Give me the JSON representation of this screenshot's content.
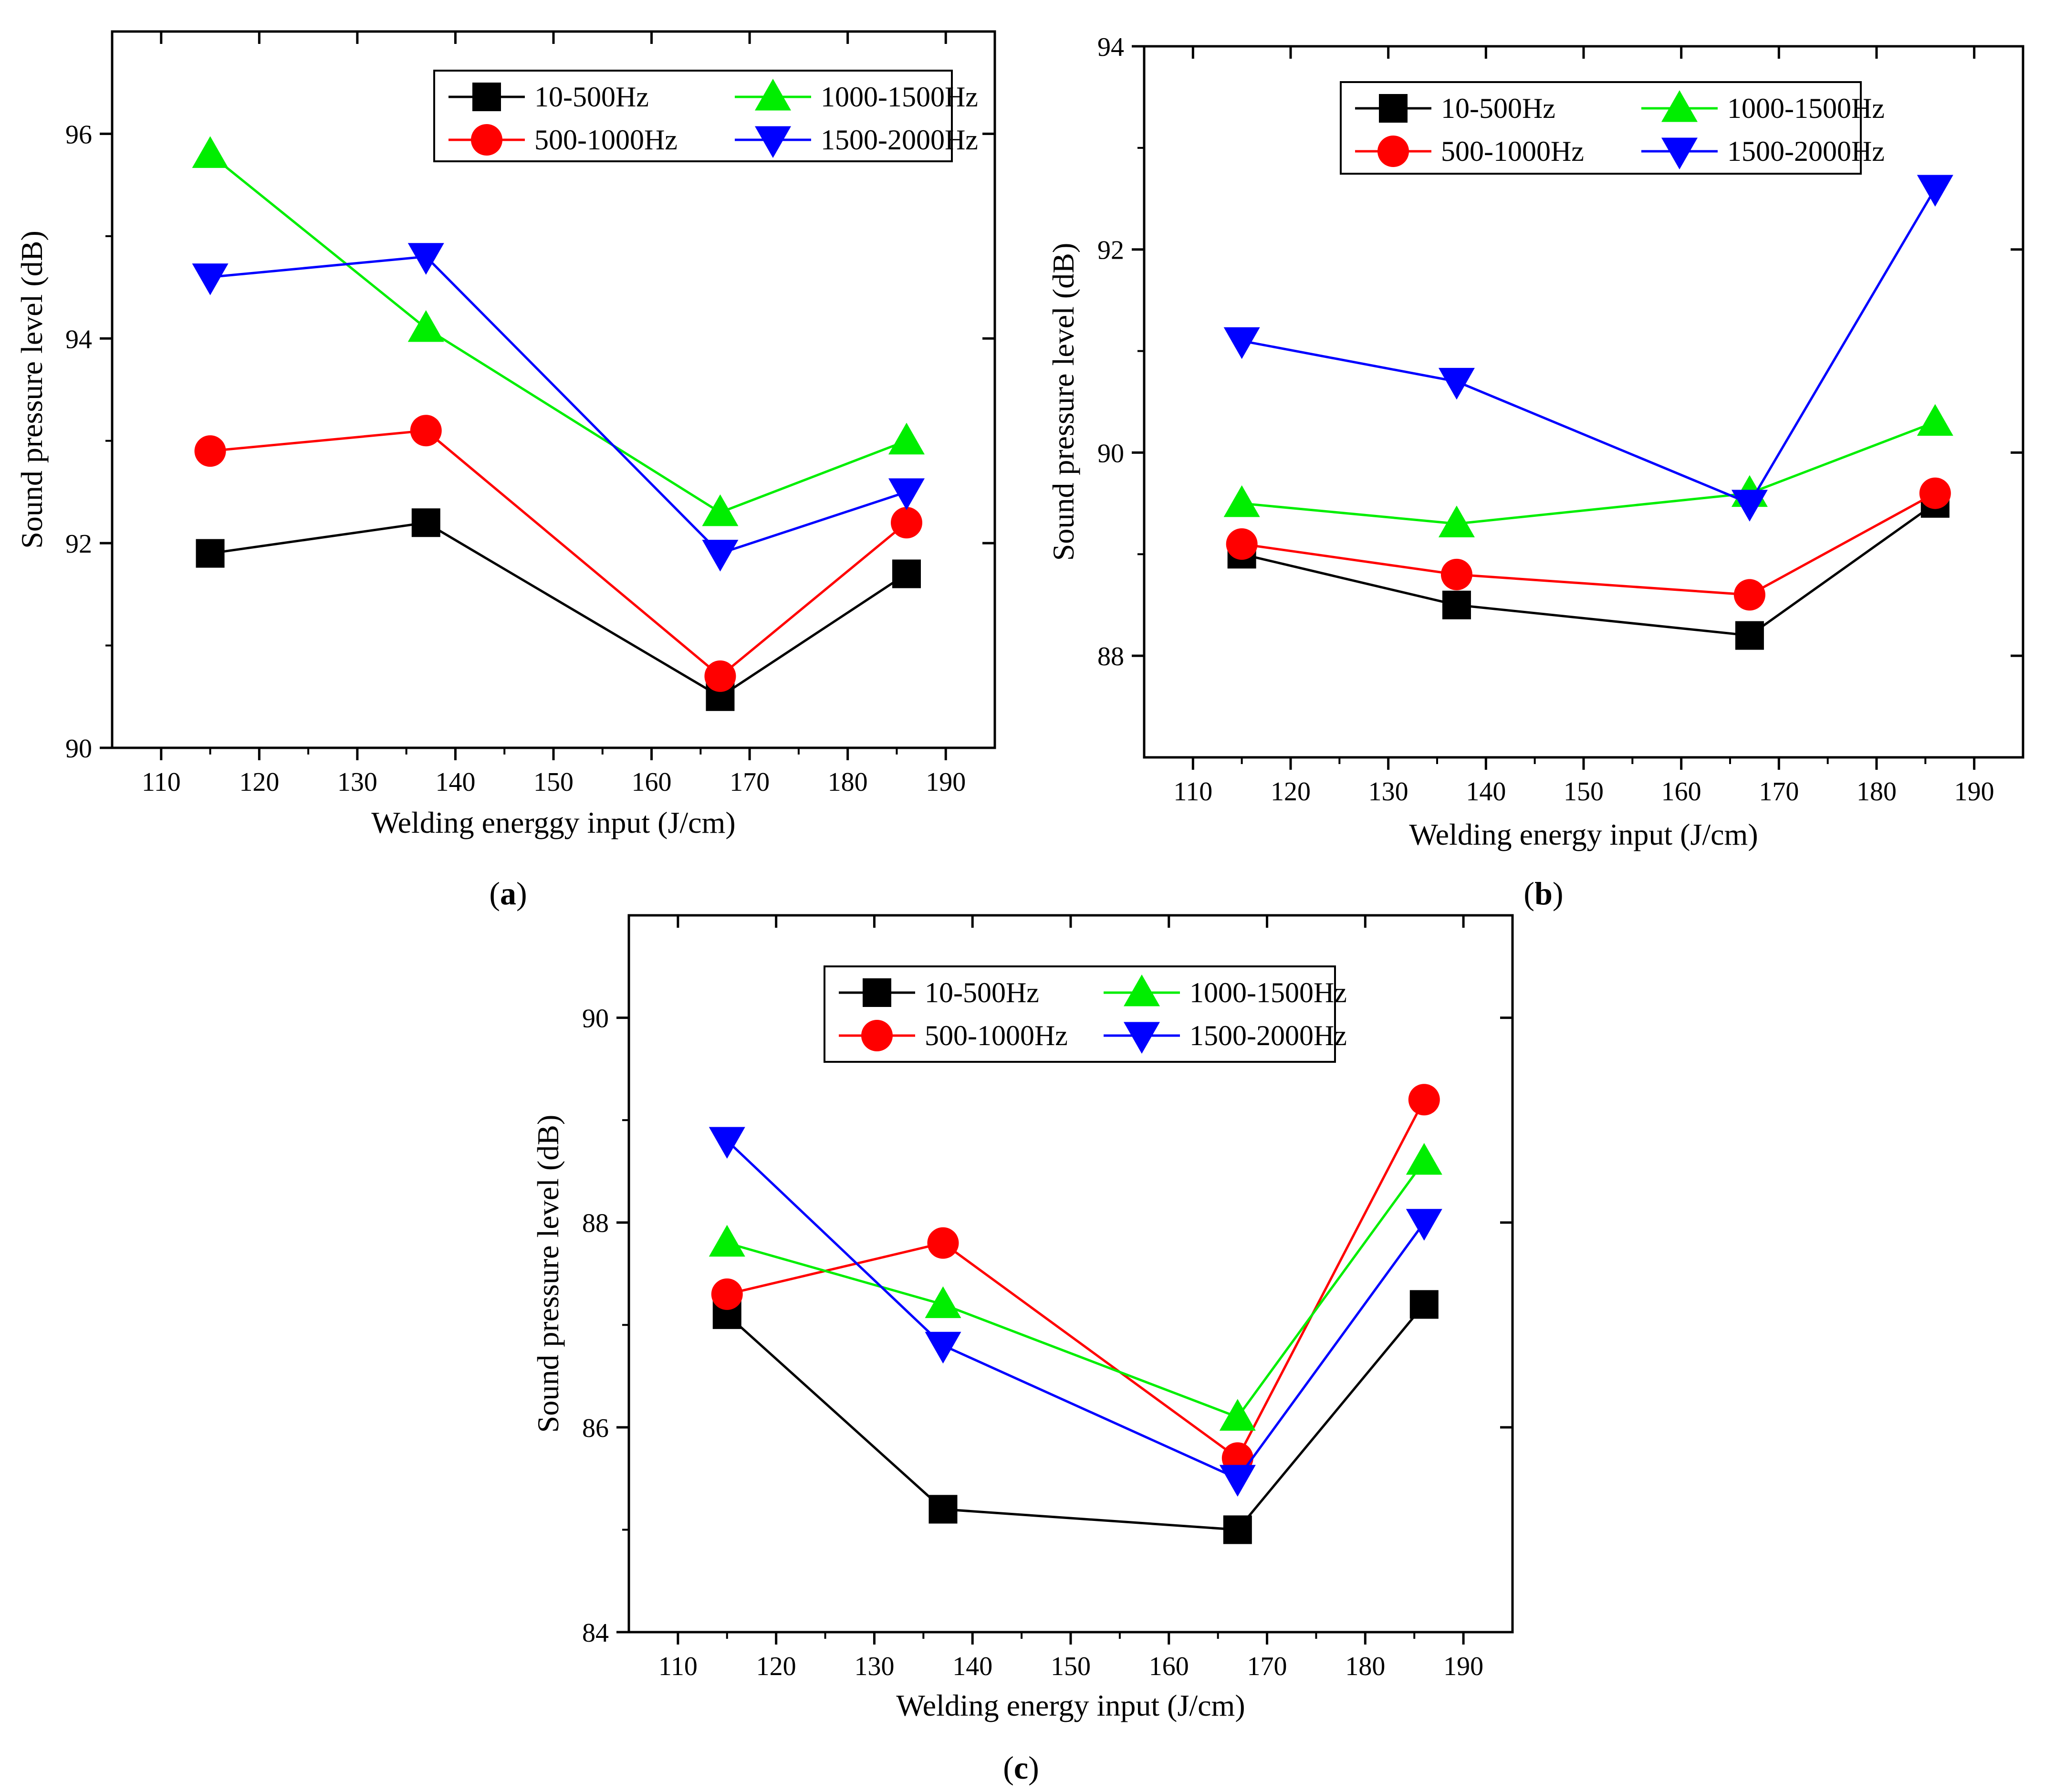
{
  "figure": {
    "x_tick_labels": [
      "110",
      "120",
      "130",
      "140",
      "150",
      "160",
      "170",
      "180",
      "190"
    ]
  },
  "chart_data": [
    {
      "type": "line",
      "panel": "a",
      "panel_label": "a",
      "xlabel": "Welding energgy input (J/cm)",
      "ylabel": "Sound pressure level (dB)",
      "xlim": [
        105,
        195
      ],
      "ylim": [
        90,
        97
      ],
      "x_ticks": [
        110,
        120,
        130,
        140,
        150,
        160,
        170,
        180,
        190
      ],
      "y_ticks": [
        90,
        92,
        94,
        96
      ],
      "y_tick_labels": [
        "90",
        "92",
        "94",
        "96"
      ],
      "legend_position": "top-right",
      "x": [
        115,
        137,
        167,
        186
      ],
      "series": [
        {
          "name": "10-500Hz",
          "color": "#000000",
          "marker": "square",
          "values": [
            91.9,
            92.2,
            90.5,
            91.7
          ]
        },
        {
          "name": "500-1000Hz",
          "color": "#ff0000",
          "marker": "circle",
          "values": [
            92.9,
            93.1,
            90.7,
            92.2
          ]
        },
        {
          "name": "1000-1500Hz",
          "color": "#00ee00",
          "marker": "triangle-up",
          "values": [
            95.8,
            94.1,
            92.3,
            93.0
          ]
        },
        {
          "name": "1500-2000Hz",
          "color": "#0000ff",
          "marker": "triangle-down",
          "values": [
            94.6,
            94.8,
            91.9,
            92.5
          ]
        }
      ]
    },
    {
      "type": "line",
      "panel": "b",
      "panel_label": "b",
      "xlabel": "Welding energy input (J/cm)",
      "ylabel": "Sound pressure level (dB)",
      "xlim": [
        105,
        195
      ],
      "ylim": [
        87,
        94
      ],
      "x_ticks": [
        110,
        120,
        130,
        140,
        150,
        160,
        170,
        180,
        190
      ],
      "y_ticks": [
        88,
        90,
        92,
        94
      ],
      "y_tick_labels": [
        "88",
        "90",
        "92",
        "94"
      ],
      "legend_position": "top-left",
      "x": [
        115,
        137,
        167,
        186
      ],
      "series": [
        {
          "name": "10-500Hz",
          "color": "#000000",
          "marker": "square",
          "values": [
            89.0,
            88.5,
            88.2,
            89.5
          ]
        },
        {
          "name": "500-1000Hz",
          "color": "#ff0000",
          "marker": "circle",
          "values": [
            89.1,
            88.8,
            88.6,
            89.6
          ]
        },
        {
          "name": "1000-1500Hz",
          "color": "#00ee00",
          "marker": "triangle-up",
          "values": [
            89.5,
            89.3,
            89.6,
            90.3
          ]
        },
        {
          "name": "1500-2000Hz",
          "color": "#0000ff",
          "marker": "triangle-down",
          "values": [
            91.1,
            90.7,
            89.5,
            92.6
          ]
        }
      ]
    },
    {
      "type": "line",
      "panel": "c",
      "panel_label": "c",
      "xlabel": "Welding energy input (J/cm)",
      "ylabel": "Sound pressure level (dB)",
      "xlim": [
        105,
        195
      ],
      "ylim": [
        84,
        91
      ],
      "x_ticks": [
        110,
        120,
        130,
        140,
        150,
        160,
        170,
        180,
        190
      ],
      "y_ticks": [
        84,
        86,
        88,
        90
      ],
      "y_tick_labels": [
        "84",
        "86",
        "88",
        "90"
      ],
      "legend_position": "top",
      "x": [
        115,
        137,
        167,
        186
      ],
      "series": [
        {
          "name": "10-500Hz",
          "color": "#000000",
          "marker": "square",
          "values": [
            87.1,
            85.2,
            85.0,
            87.2
          ]
        },
        {
          "name": "500-1000Hz",
          "color": "#ff0000",
          "marker": "circle",
          "values": [
            87.3,
            87.8,
            85.7,
            89.2
          ]
        },
        {
          "name": "1000-1500Hz",
          "color": "#00ee00",
          "marker": "triangle-up",
          "values": [
            87.8,
            87.2,
            86.1,
            88.6
          ]
        },
        {
          "name": "1500-2000Hz",
          "color": "#0000ff",
          "marker": "triangle-down",
          "values": [
            88.8,
            86.8,
            85.5,
            88.0
          ]
        }
      ]
    }
  ]
}
